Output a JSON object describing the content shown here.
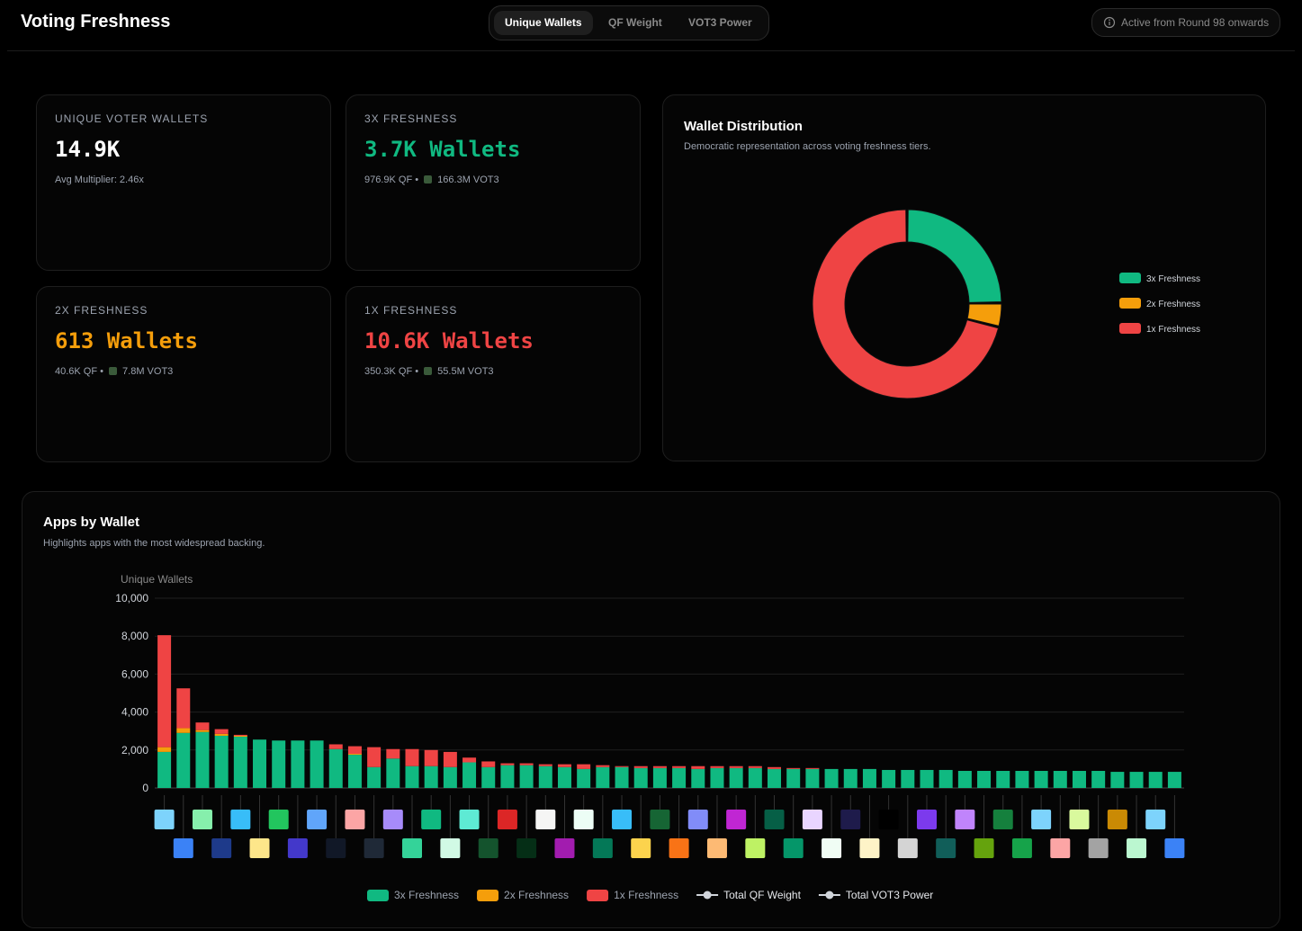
{
  "header": {
    "title": "Voting Freshness",
    "tabs": [
      "Unique Wallets",
      "QF Weight",
      "VOT3 Power"
    ],
    "notice": "Active from Round 98 onwards"
  },
  "cards": [
    {
      "label": "UNIQUE VOTER WALLETS",
      "value": "14.9K",
      "sub": [
        "Avg Multiplier: 2.46x"
      ],
      "color": "#ffffff"
    },
    {
      "label": "3X FRESHNESS",
      "value": "3.7K Wallets",
      "sub": [
        "976.9K QF",
        "166.3M VOT3"
      ],
      "color": "#10b981"
    },
    {
      "label": "2X FRESHNESS",
      "value": "613 Wallets",
      "sub": [
        "40.6K QF",
        "7.8M VOT3"
      ],
      "color": "#f59e0b"
    },
    {
      "label": "1X FRESHNESS",
      "value": "10.6K Wallets",
      "sub": [
        "350.3K QF",
        "55.5M VOT3"
      ],
      "color": "#ef4444"
    }
  ],
  "chart_data": [
    {
      "type": "pie",
      "title": "Wallet Distribution",
      "subtitle": "Democratic representation across voting freshness tiers.",
      "categories": [
        "3x Freshness",
        "2x Freshness",
        "1x Freshness"
      ],
      "values": [
        3700,
        613,
        10600
      ],
      "colors": [
        "#10b981",
        "#f59e0b",
        "#ef4444"
      ],
      "legend": "right"
    },
    {
      "type": "bar",
      "stacked": true,
      "title": "Apps by Wallet",
      "subtitle": "Highlights apps with the most widespread backing.",
      "ylabel": "Unique Wallets",
      "categories": [
        null,
        null,
        null,
        null,
        null,
        null,
        null,
        null,
        null,
        null,
        null,
        null,
        null,
        null,
        null,
        null,
        null,
        null,
        null,
        null,
        null,
        null,
        null,
        null,
        null,
        null,
        null,
        null,
        null,
        null,
        null,
        null,
        null,
        null,
        null,
        null,
        null,
        null,
        null,
        null,
        null,
        null,
        null,
        null,
        null,
        null,
        null,
        null,
        null,
        null,
        null,
        null,
        null,
        null
      ],
      "series": [
        {
          "name": "3x Freshness",
          "color": "#10b981",
          "values": [
            1900,
            2900,
            2950,
            2750,
            2700,
            2550,
            2500,
            2500,
            2500,
            2050,
            1750,
            1100,
            1550,
            1150,
            1150,
            1100,
            1350,
            1100,
            1200,
            1200,
            1150,
            1100,
            1000,
            1100,
            1100,
            1050,
            1050,
            1050,
            1000,
            1050,
            1050,
            1050,
            1000,
            1000,
            1000,
            1000,
            1000,
            1000,
            950,
            950,
            950,
            950,
            900,
            900,
            900,
            900,
            900,
            900,
            900,
            900,
            850,
            850,
            850,
            850
          ]
        },
        {
          "name": "2x Freshness",
          "color": "#f59e0b",
          "values": [
            250,
            250,
            100,
            100,
            50,
            0,
            0,
            0,
            0,
            0,
            50,
            0,
            0,
            0,
            0,
            0,
            0,
            0,
            0,
            0,
            0,
            0,
            0,
            0,
            0,
            0,
            0,
            0,
            0,
            0,
            0,
            0,
            0,
            0,
            0,
            0,
            0,
            0,
            0,
            0,
            0,
            0,
            0,
            0,
            0,
            0,
            0,
            0,
            0,
            0,
            0,
            0,
            0,
            0
          ]
        },
        {
          "name": "1x Freshness",
          "color": "#ef4444",
          "values": [
            5900,
            2100,
            400,
            250,
            50,
            0,
            0,
            0,
            0,
            250,
            400,
            1050,
            500,
            900,
            850,
            800,
            250,
            300,
            100,
            100,
            100,
            150,
            250,
            100,
            50,
            100,
            100,
            100,
            150,
            100,
            100,
            100,
            100,
            50,
            50,
            0,
            0,
            0,
            0,
            0,
            0,
            0,
            0,
            0,
            0,
            0,
            0,
            0,
            0,
            0,
            0,
            0,
            0,
            0
          ]
        }
      ],
      "line_legend": [
        {
          "name": "Total QF Weight",
          "color": "#d1d5db"
        },
        {
          "name": "Total VOT3 Power",
          "color": "#d1d5db"
        }
      ],
      "ylim": [
        0,
        10000
      ],
      "yticks": [
        0,
        {
          "value": 2000,
          "label": "2,000"
        },
        {
          "value": 4000,
          "label": "4,000"
        },
        {
          "value": 6000,
          "label": "6,000"
        },
        {
          "value": 8000,
          "label": "8,000"
        },
        {
          "value": 10000,
          "label": "10,000"
        }
      ],
      "grid": true
    }
  ]
}
